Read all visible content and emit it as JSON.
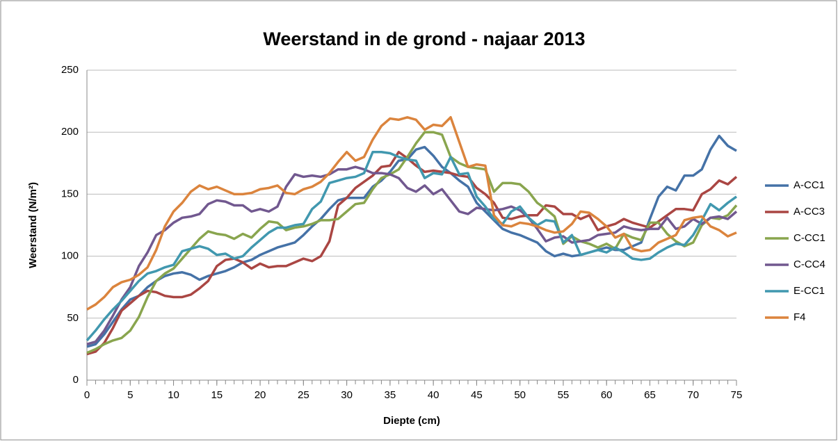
{
  "chart_data": {
    "type": "line",
    "title": "Weerstand in de grond - najaar 2013",
    "x_label": "Diepte (cm)",
    "y_label": "Weerstand (N/m²)",
    "x": [
      0,
      1,
      2,
      3,
      4,
      5,
      6,
      7,
      8,
      9,
      10,
      11,
      12,
      13,
      14,
      15,
      16,
      17,
      18,
      19,
      20,
      21,
      22,
      23,
      24,
      25,
      26,
      27,
      28,
      29,
      30,
      31,
      32,
      33,
      34,
      35,
      36,
      37,
      38,
      39,
      40,
      41,
      42,
      43,
      44,
      45,
      46,
      47,
      48,
      49,
      50,
      51,
      52,
      53,
      54,
      55,
      56,
      57,
      58,
      59,
      60,
      61,
      62,
      63,
      64,
      65,
      66,
      67,
      68,
      69,
      70,
      71,
      72,
      73,
      74,
      75
    ],
    "xlim": [
      0,
      75
    ],
    "xticks": [
      0,
      5,
      10,
      15,
      20,
      25,
      30,
      35,
      40,
      45,
      50,
      55,
      60,
      65,
      70,
      75
    ],
    "ylim": [
      0,
      250
    ],
    "yticks": [
      0,
      50,
      100,
      150,
      200,
      250
    ],
    "grid": true,
    "legend": "right",
    "series": [
      {
        "name": "A-CC1",
        "color": "#4572A7",
        "values": [
          27,
          29,
          37,
          47,
          57,
          65,
          68,
          75,
          80,
          84,
          86,
          87,
          85,
          81,
          84,
          86,
          88,
          91,
          95,
          97,
          101,
          104,
          107,
          109,
          111,
          117,
          124,
          130,
          138,
          145,
          147,
          147,
          147,
          156,
          161,
          168,
          177,
          178,
          186,
          188,
          181,
          172,
          167,
          161,
          156,
          143,
          136,
          129,
          122,
          119,
          117,
          114,
          111,
          104,
          100,
          102,
          100,
          101,
          103,
          105,
          107,
          105,
          105,
          108,
          111,
          130,
          148,
          156,
          153,
          165,
          165,
          170,
          186,
          197,
          189,
          185
        ]
      },
      {
        "name": "A-CC3",
        "color": "#AA4643",
        "values": [
          21,
          23,
          30,
          42,
          56,
          62,
          68,
          72,
          71,
          68,
          67,
          67,
          69,
          74,
          80,
          92,
          97,
          98,
          95,
          90,
          94,
          91,
          92,
          92,
          95,
          98,
          96,
          100,
          112,
          141,
          147,
          155,
          160,
          165,
          172,
          173,
          184,
          179,
          173,
          168,
          169,
          168,
          167,
          165,
          164,
          155,
          150,
          143,
          131,
          130,
          132,
          133,
          133,
          141,
          140,
          134,
          134,
          130,
          133,
          121,
          124,
          126,
          130,
          127,
          125,
          123,
          128,
          133,
          138,
          138,
          137,
          150,
          154,
          161,
          158,
          164
        ]
      },
      {
        "name": "C-CC1",
        "color": "#89A54E",
        "values": [
          22,
          25,
          29,
          32,
          34,
          40,
          51,
          67,
          80,
          86,
          90,
          98,
          106,
          114,
          120,
          118,
          117,
          114,
          118,
          115,
          122,
          128,
          127,
          121,
          123,
          124,
          126,
          129,
          129,
          130,
          136,
          142,
          143,
          154,
          163,
          166,
          170,
          180,
          191,
          200,
          200,
          198,
          180,
          175,
          172,
          171,
          170,
          152,
          159,
          159,
          158,
          152,
          143,
          138,
          132,
          110,
          116,
          112,
          110,
          107,
          110,
          106,
          118,
          115,
          113,
          127,
          127,
          118,
          112,
          108,
          111,
          125,
          131,
          130,
          133,
          141
        ]
      },
      {
        "name": "C-CC4",
        "color": "#71588F",
        "values": [
          29,
          31,
          40,
          52,
          65,
          75,
          92,
          103,
          117,
          121,
          127,
          131,
          132,
          134,
          142,
          145,
          144,
          141,
          141,
          136,
          138,
          136,
          140,
          156,
          166,
          164,
          165,
          164,
          166,
          170,
          170,
          172,
          170,
          167,
          167,
          166,
          163,
          155,
          152,
          157,
          150,
          154,
          145,
          136,
          134,
          139,
          138,
          137,
          138,
          140,
          137,
          131,
          122,
          112,
          115,
          116,
          111,
          112,
          113,
          117,
          118,
          119,
          124,
          122,
          121,
          122,
          122,
          131,
          122,
          124,
          130,
          126,
          131,
          132,
          130,
          136
        ]
      },
      {
        "name": "E-CC1",
        "color": "#4198AF",
        "values": [
          32,
          40,
          49,
          57,
          64,
          72,
          80,
          86,
          88,
          91,
          93,
          104,
          106,
          108,
          106,
          101,
          102,
          98,
          100,
          107,
          113,
          119,
          123,
          123,
          125,
          126,
          138,
          144,
          159,
          161,
          163,
          164,
          167,
          184,
          184,
          183,
          180,
          178,
          177,
          163,
          167,
          166,
          180,
          166,
          167,
          148,
          140,
          130,
          126,
          136,
          140,
          131,
          125,
          129,
          128,
          111,
          117,
          101,
          103,
          105,
          103,
          107,
          103,
          98,
          97,
          98,
          103,
          107,
          110,
          109,
          117,
          129,
          142,
          137,
          143,
          148
        ]
      },
      {
        "name": "F4",
        "color": "#DB843D",
        "values": [
          57,
          61,
          67,
          75,
          79,
          81,
          85,
          91,
          105,
          124,
          136,
          143,
          152,
          157,
          154,
          156,
          153,
          150,
          150,
          151,
          154,
          155,
          157,
          151,
          150,
          154,
          156,
          160,
          167,
          176,
          184,
          177,
          180,
          194,
          205,
          211,
          210,
          212,
          210,
          202,
          206,
          205,
          212,
          192,
          172,
          174,
          173,
          133,
          125,
          124,
          127,
          126,
          124,
          121,
          119,
          120,
          126,
          136,
          135,
          130,
          124,
          115,
          118,
          106,
          104,
          105,
          111,
          114,
          117,
          129,
          131,
          132,
          124,
          121,
          116,
          119
        ]
      }
    ]
  }
}
